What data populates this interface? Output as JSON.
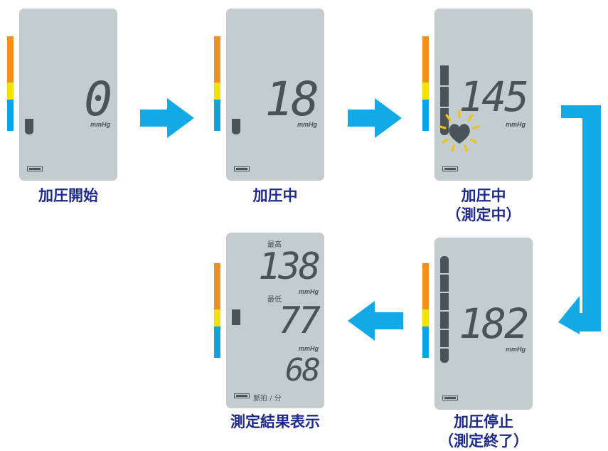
{
  "steps": [
    {
      "caption": "加圧開始",
      "reading": "0"
    },
    {
      "caption": "加圧中",
      "reading": "18"
    },
    {
      "caption_line1": "加圧中",
      "caption_line2": "（測定中）",
      "reading": "145"
    },
    {
      "caption_line1": "加圧停止",
      "caption_line2": "（測定終了）",
      "reading": "182"
    },
    {
      "caption": "測定結果表示",
      "systolic_label": "最高",
      "systolic": "138",
      "diastolic_label": "最低",
      "diastolic": "77",
      "pulse": "68",
      "pulse_label": "脈拍 / 分"
    }
  ],
  "unit": "mmHg",
  "icons": [
    "right-arrow-icon",
    "right-arrow-icon",
    "down-left-arrow-icon",
    "left-arrow-icon",
    "heart-icon",
    "battery-icon"
  ],
  "colors": {
    "orange": "#f0901e",
    "yellow": "#f2e400",
    "blue": "#0aa4e0",
    "arrow": "#12aae6",
    "panel": "#c3ccce",
    "caption": "#1e2a8a"
  }
}
